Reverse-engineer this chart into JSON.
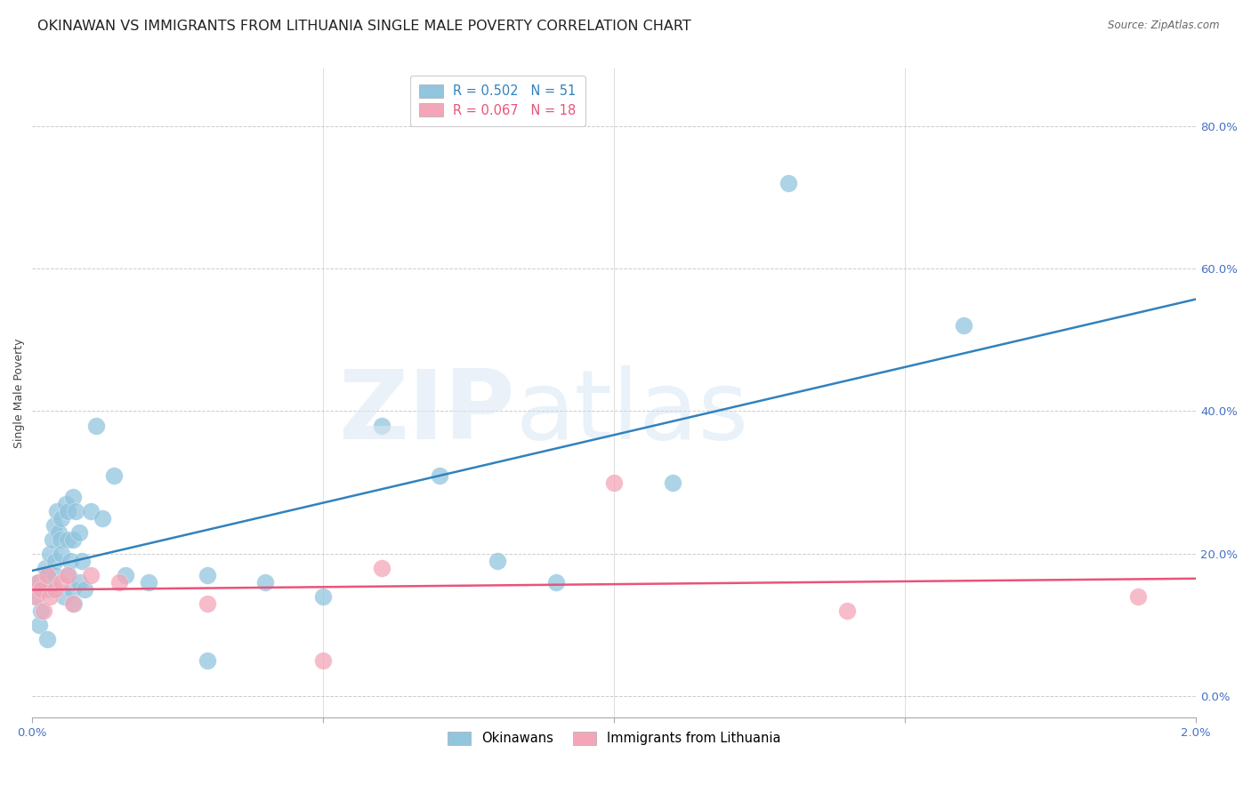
{
  "title": "OKINAWAN VS IMMIGRANTS FROM LITHUANIA SINGLE MALE POVERTY CORRELATION CHART",
  "source": "Source: ZipAtlas.com",
  "ylabel": "Single Male Poverty",
  "right_yticklabels": [
    "0.0%",
    "20.0%",
    "40.0%",
    "60.0%",
    "80.0%"
  ],
  "right_yticks": [
    0.0,
    0.2,
    0.4,
    0.6,
    0.8
  ],
  "legend1_label": "R = 0.502   N = 51",
  "legend2_label": "R = 0.067   N = 18",
  "legend_group1": "Okinawans",
  "legend_group2": "Immigrants from Lithuania",
  "color_blue": "#92c5de",
  "color_pink": "#f4a6b8",
  "line_blue": "#3182bd",
  "line_pink": "#e8547a",
  "background": "#ffffff",
  "okinawan_x": [
    5e-05,
    0.0001,
    0.00012,
    0.00015,
    0.0002,
    0.00022,
    0.00025,
    0.00025,
    0.0003,
    0.00032,
    0.00035,
    0.00038,
    0.0004,
    0.0004,
    0.00042,
    0.00045,
    0.00048,
    0.0005,
    0.0005,
    0.00055,
    0.00058,
    0.0006,
    0.0006,
    0.00062,
    0.00065,
    0.00068,
    0.0007,
    0.0007,
    0.00072,
    0.00075,
    0.0008,
    0.0008,
    0.00085,
    0.0009,
    0.001,
    0.0011,
    0.0012,
    0.0014,
    0.0016,
    0.002,
    0.003,
    0.003,
    0.004,
    0.005,
    0.006,
    0.007,
    0.008,
    0.009,
    0.011,
    0.013,
    0.016
  ],
  "okinawan_y": [
    0.14,
    0.16,
    0.1,
    0.12,
    0.15,
    0.18,
    0.08,
    0.17,
    0.2,
    0.15,
    0.22,
    0.24,
    0.19,
    0.17,
    0.26,
    0.23,
    0.22,
    0.25,
    0.2,
    0.14,
    0.27,
    0.26,
    0.22,
    0.17,
    0.19,
    0.15,
    0.28,
    0.22,
    0.13,
    0.26,
    0.16,
    0.23,
    0.19,
    0.15,
    0.26,
    0.38,
    0.25,
    0.31,
    0.17,
    0.16,
    0.17,
    0.05,
    0.16,
    0.14,
    0.38,
    0.31,
    0.19,
    0.16,
    0.3,
    0.72,
    0.52
  ],
  "lithuania_x": [
    5e-05,
    0.0001,
    0.00015,
    0.0002,
    0.00025,
    0.0003,
    0.0004,
    0.0005,
    0.0006,
    0.0007,
    0.001,
    0.0015,
    0.003,
    0.005,
    0.006,
    0.01,
    0.014,
    0.019
  ],
  "lithuania_y": [
    0.14,
    0.16,
    0.15,
    0.12,
    0.17,
    0.14,
    0.15,
    0.16,
    0.17,
    0.13,
    0.17,
    0.16,
    0.13,
    0.05,
    0.18,
    0.3,
    0.12,
    0.14
  ],
  "xmin": 0.0,
  "xmax": 0.02,
  "ymin": -0.03,
  "ymax": 0.88,
  "title_fontsize": 11.5,
  "axis_fontsize": 9,
  "tick_fontsize": 9.5,
  "source_fontsize": 8.5
}
